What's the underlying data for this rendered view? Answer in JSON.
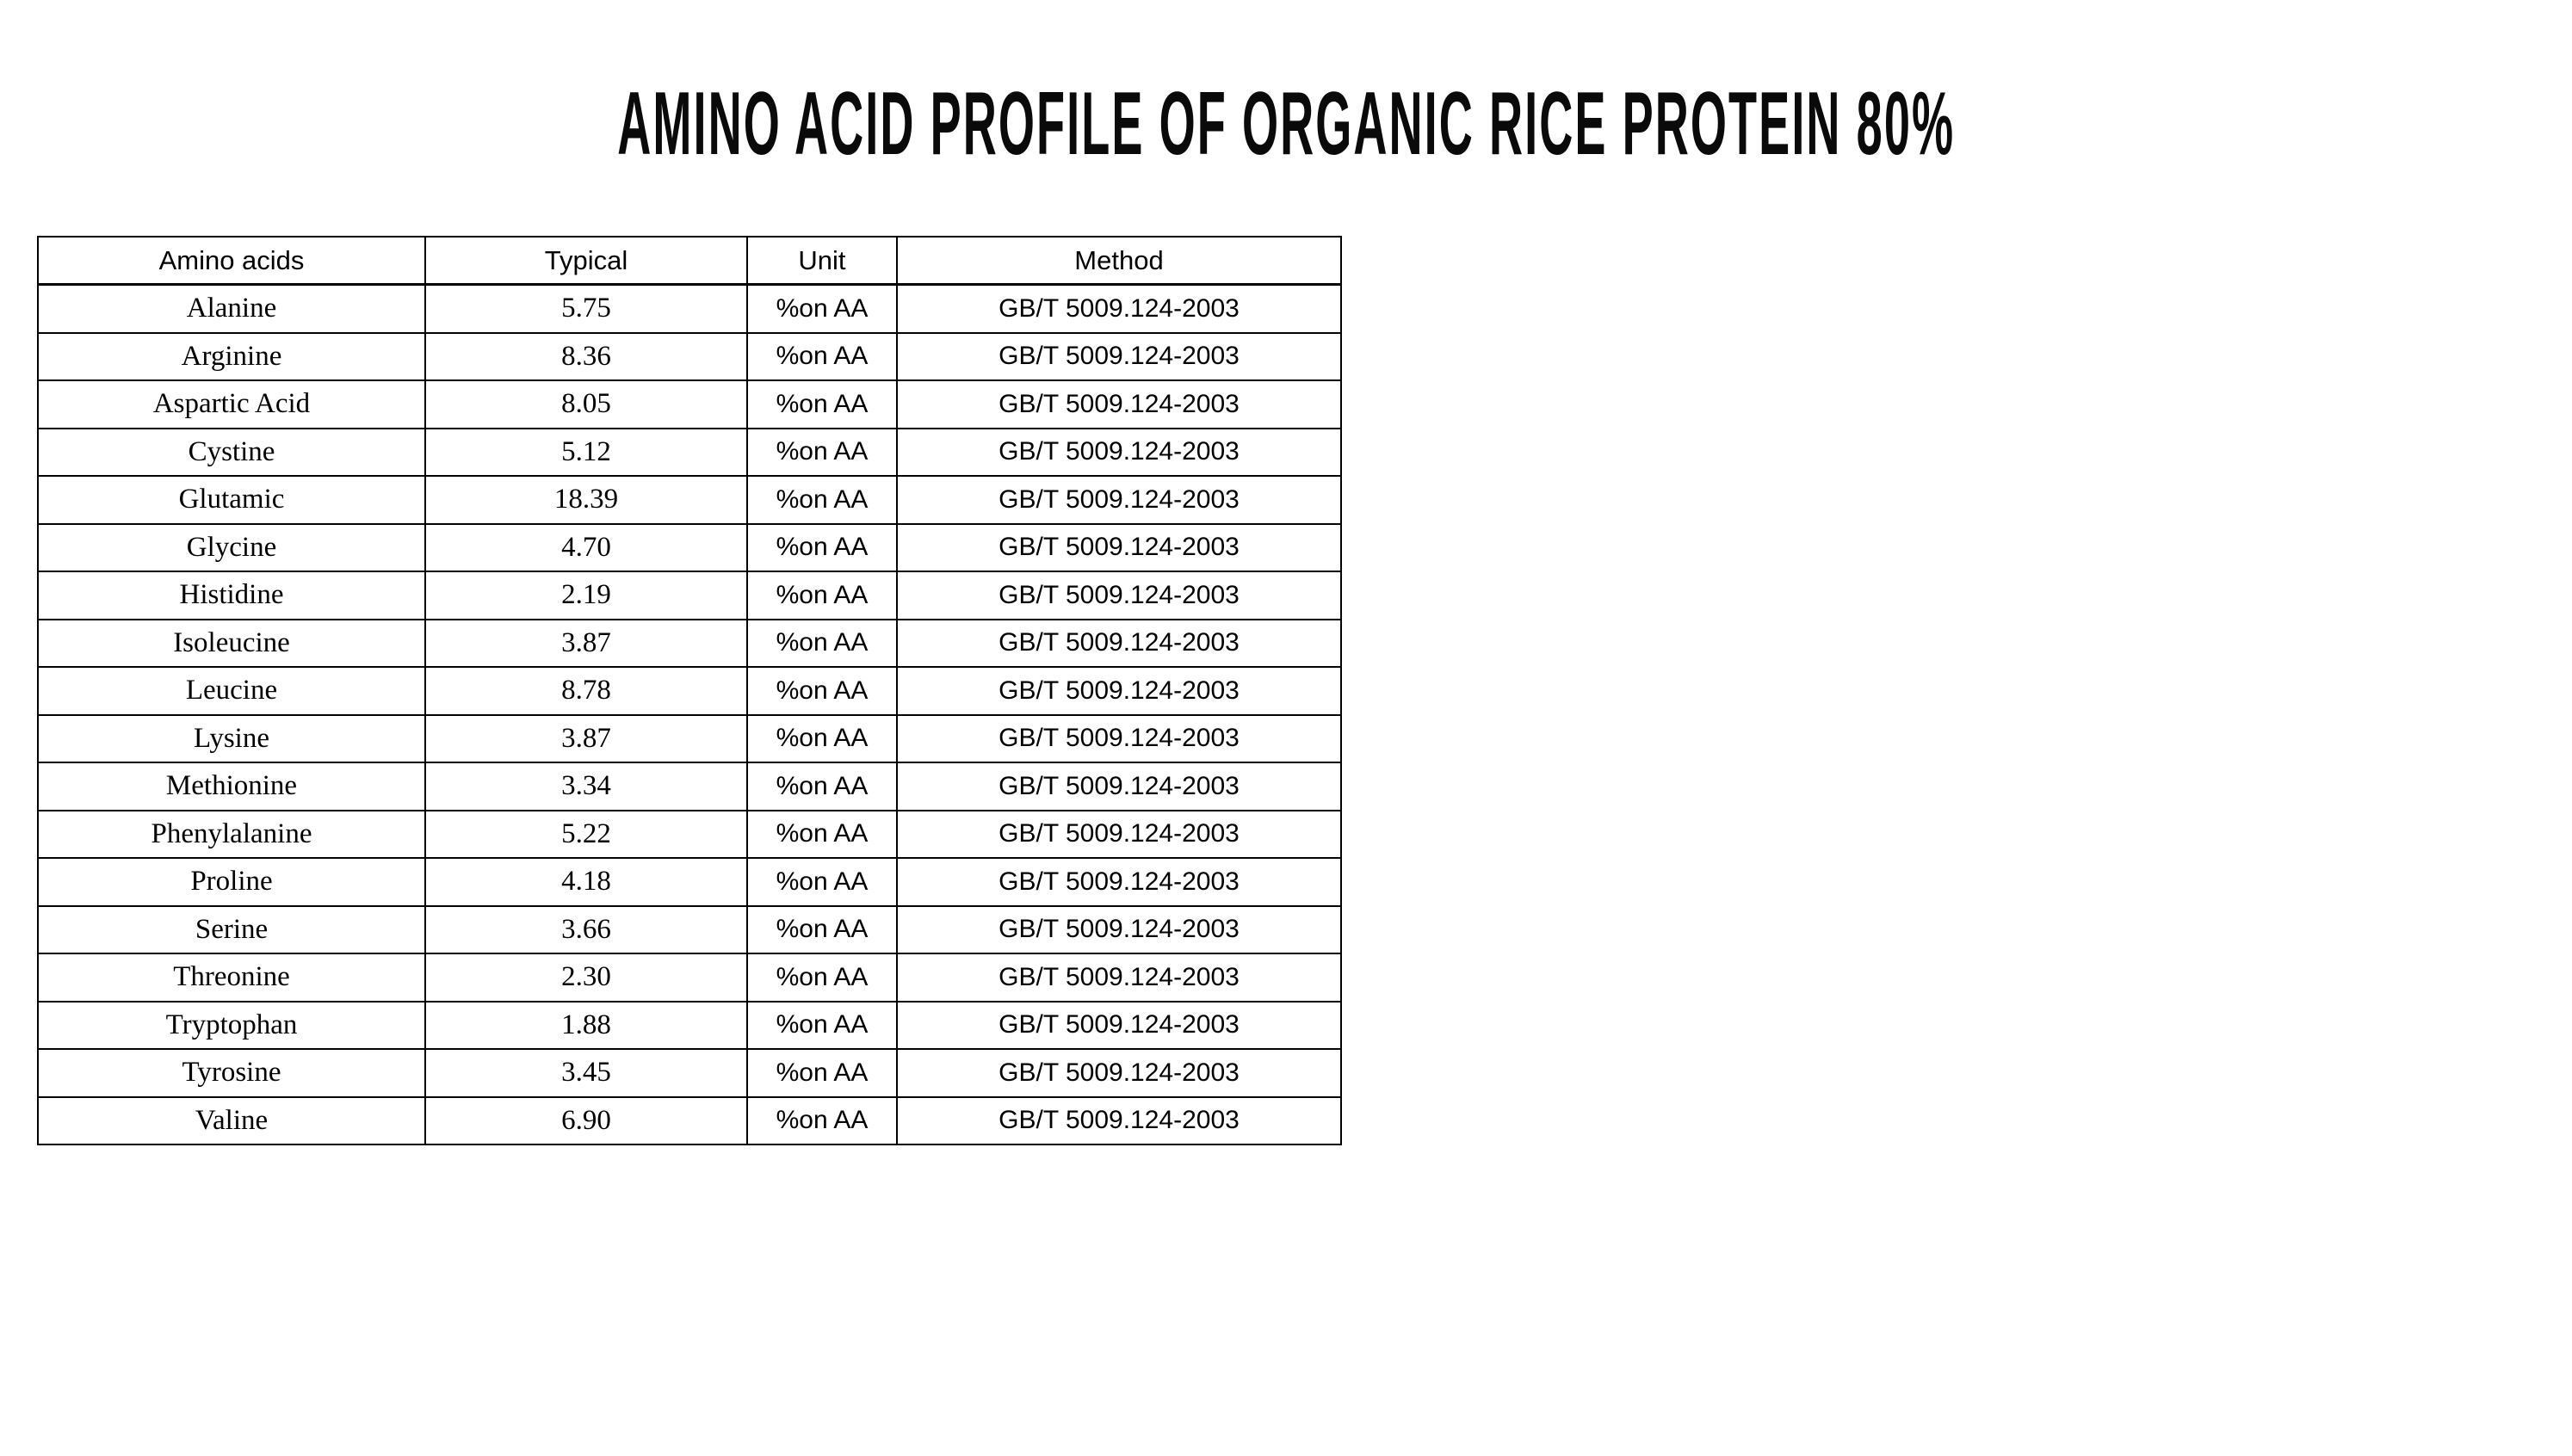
{
  "page": {
    "background_color": "#ffffff",
    "text_color": "#000000",
    "border_color": "#000000"
  },
  "title": "AMINO ACID PROFILE OF ORGANIC RICE PROTEIN 80%",
  "table": {
    "columns": [
      "Amino acids",
      "Typical",
      "Unit",
      "Method"
    ],
    "rows": [
      {
        "name": "Alanine",
        "typical": "5.75",
        "unit": "%on AA",
        "method": "GB/T 5009.124-2003"
      },
      {
        "name": "Arginine",
        "typical": "8.36",
        "unit": "%on AA",
        "method": "GB/T 5009.124-2003"
      },
      {
        "name": "Aspartic Acid",
        "typical": "8.05",
        "unit": "%on AA",
        "method": "GB/T 5009.124-2003"
      },
      {
        "name": "Cystine",
        "typical": "5.12",
        "unit": "%on AA",
        "method": "GB/T 5009.124-2003"
      },
      {
        "name": "Glutamic",
        "typical": "18.39",
        "unit": "%on AA",
        "method": "GB/T 5009.124-2003"
      },
      {
        "name": "Glycine",
        "typical": "4.70",
        "unit": "%on AA",
        "method": "GB/T 5009.124-2003"
      },
      {
        "name": "Histidine",
        "typical": "2.19",
        "unit": "%on AA",
        "method": "GB/T 5009.124-2003"
      },
      {
        "name": "Isoleucine",
        "typical": "3.87",
        "unit": "%on AA",
        "method": "GB/T 5009.124-2003"
      },
      {
        "name": "Leucine",
        "typical": "8.78",
        "unit": "%on AA",
        "method": "GB/T 5009.124-2003"
      },
      {
        "name": "Lysine",
        "typical": "3.87",
        "unit": "%on AA",
        "method": "GB/T 5009.124-2003"
      },
      {
        "name": "Methionine",
        "typical": "3.34",
        "unit": "%on AA",
        "method": "GB/T 5009.124-2003"
      },
      {
        "name": "Phenylalanine",
        "typical": "5.22",
        "unit": "%on AA",
        "method": "GB/T 5009.124-2003"
      },
      {
        "name": "Proline",
        "typical": "4.18",
        "unit": "%on AA",
        "method": "GB/T 5009.124-2003"
      },
      {
        "name": "Serine",
        "typical": "3.66",
        "unit": "%on AA",
        "method": "GB/T 5009.124-2003"
      },
      {
        "name": "Threonine",
        "typical": "2.30",
        "unit": "%on AA",
        "method": "GB/T 5009.124-2003"
      },
      {
        "name": "Tryptophan",
        "typical": "1.88",
        "unit": "%on AA",
        "method": "GB/T 5009.124-2003"
      },
      {
        "name": "Tyrosine",
        "typical": "3.45",
        "unit": "%on AA",
        "method": "GB/T 5009.124-2003"
      },
      {
        "name": "Valine",
        "typical": "6.90",
        "unit": "%on AA",
        "method": "GB/T 5009.124-2003"
      }
    ]
  },
  "chart_data": {
    "type": "table",
    "title": "AMINO ACID PROFILE OF ORGANIC RICE PROTEIN 80%",
    "categories": [
      "Alanine",
      "Arginine",
      "Aspartic Acid",
      "Cystine",
      "Glutamic",
      "Glycine",
      "Histidine",
      "Isoleucine",
      "Leucine",
      "Lysine",
      "Methionine",
      "Phenylalanine",
      "Proline",
      "Serine",
      "Threonine",
      "Tryptophan",
      "Tyrosine",
      "Valine"
    ],
    "values": [
      5.75,
      8.36,
      8.05,
      5.12,
      18.39,
      4.7,
      2.19,
      3.87,
      8.78,
      3.87,
      3.34,
      5.22,
      4.18,
      3.66,
      2.3,
      1.88,
      3.45,
      6.9
    ],
    "unit": "%on AA",
    "method": "GB/T 5009.124-2003"
  }
}
